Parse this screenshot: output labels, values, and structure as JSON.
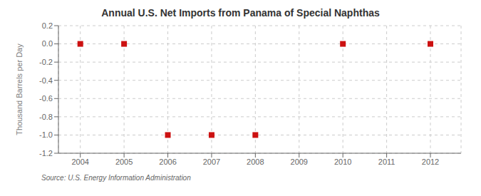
{
  "chart_data": {
    "type": "scatter",
    "title": "Annual U.S. Net Imports from Panama of Special Naphthas",
    "ylabel": "Thousand Barrels per Day",
    "annotations": [
      "Source: U.S. Energy Information Administration"
    ],
    "x": [
      2004,
      2005,
      2006,
      2007,
      2008,
      2009,
      2010,
      2011,
      2012
    ],
    "values": [
      0,
      0,
      -1,
      -1,
      -1,
      null,
      0,
      null,
      0
    ],
    "color": "#CC1111",
    "marker": "square",
    "xlim": [
      2003.5,
      2012.7
    ],
    "xticks": [
      2004,
      2005,
      2006,
      2007,
      2008,
      2009,
      2010,
      2011,
      2012
    ],
    "ylim": [
      -1.2,
      0.2
    ],
    "yticks": [
      0.2,
      {
        "value": 0,
        "label": "0.0"
      },
      -0.2,
      -0.4,
      -0.6,
      -0.8,
      {
        "value": -1,
        "label": "-1.0"
      },
      -1.2
    ],
    "grid": true
  }
}
